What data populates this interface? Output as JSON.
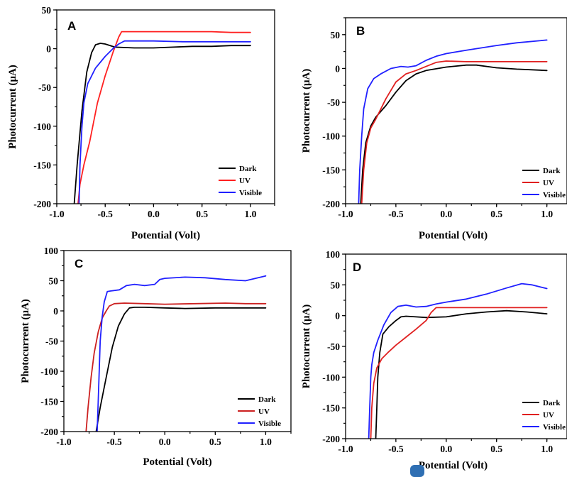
{
  "chart_data": [
    {
      "type": "line",
      "panel_label": "A",
      "xlabel": "Potential (Volt)",
      "ylabel": "Photocurrent (μA)",
      "xlim": [
        -1.0,
        1.25
      ],
      "ylim": [
        -200,
        50
      ],
      "xticks": [
        -1.0,
        -0.5,
        0.0,
        0.5,
        1.0
      ],
      "xtick_labels": [
        "-1.0",
        "-0.5",
        "0.0",
        "0.5",
        "1.0"
      ],
      "yticks": [
        -200,
        -150,
        -100,
        -50,
        0,
        50
      ],
      "ytick_labels": [
        "-200",
        "-150",
        "-100",
        "-50",
        "0",
        "50"
      ],
      "legend_position": "bottom-right",
      "series": [
        {
          "name": "Dark",
          "color": "#000000",
          "points": [
            [
              -0.82,
              -200
            ],
            [
              -0.79,
              -150
            ],
            [
              -0.74,
              -80
            ],
            [
              -0.69,
              -30
            ],
            [
              -0.64,
              -5
            ],
            [
              -0.6,
              5
            ],
            [
              -0.55,
              7
            ],
            [
              -0.5,
              6
            ],
            [
              -0.4,
              2
            ],
            [
              -0.2,
              1
            ],
            [
              0.0,
              1
            ],
            [
              0.2,
              2
            ],
            [
              0.4,
              3
            ],
            [
              0.6,
              3
            ],
            [
              0.8,
              4
            ],
            [
              1.0,
              4
            ]
          ]
        },
        {
          "name": "UV",
          "color": "#ff2020",
          "points": [
            [
              -0.78,
              -200
            ],
            [
              -0.76,
              -175
            ],
            [
              -0.72,
              -150
            ],
            [
              -0.66,
              -120
            ],
            [
              -0.58,
              -70
            ],
            [
              -0.5,
              -35
            ],
            [
              -0.42,
              -5
            ],
            [
              -0.36,
              15
            ],
            [
              -0.33,
              22
            ],
            [
              -0.2,
              22
            ],
            [
              0.0,
              22
            ],
            [
              0.3,
              22
            ],
            [
              0.6,
              22
            ],
            [
              0.8,
              21
            ],
            [
              1.0,
              21
            ]
          ]
        },
        {
          "name": "Visible",
          "color": "#2020ff",
          "points": [
            [
              -0.77,
              -200
            ],
            [
              -0.76,
              -150
            ],
            [
              -0.74,
              -100
            ],
            [
              -0.72,
              -70
            ],
            [
              -0.68,
              -45
            ],
            [
              -0.6,
              -25
            ],
            [
              -0.5,
              -10
            ],
            [
              -0.42,
              0
            ],
            [
              -0.36,
              6
            ],
            [
              -0.3,
              10
            ],
            [
              -0.2,
              10
            ],
            [
              0.0,
              10
            ],
            [
              0.3,
              9
            ],
            [
              0.6,
              9
            ],
            [
              0.8,
              9
            ],
            [
              1.0,
              9
            ]
          ]
        }
      ]
    },
    {
      "type": "line",
      "panel_label": "B",
      "xlabel": "Potential (Volt)",
      "ylabel": "Photocurrent (μA)",
      "xlim": [
        -1.0,
        1.2
      ],
      "ylim": [
        -200,
        75
      ],
      "xticks": [
        -1.0,
        -0.5,
        0.0,
        0.5,
        1.0
      ],
      "xtick_labels": [
        "-1.0",
        "-0.5",
        "0.0",
        "0.5",
        "1.0"
      ],
      "yticks": [
        -200,
        -150,
        -100,
        -50,
        0,
        50
      ],
      "ytick_labels": [
        "-200",
        "-150",
        "-100",
        "-50",
        "0",
        "50"
      ],
      "legend_position": "bottom-right",
      "series": [
        {
          "name": "Dark",
          "color": "#000000",
          "points": [
            [
              -0.85,
              -200
            ],
            [
              -0.83,
              -150
            ],
            [
              -0.8,
              -110
            ],
            [
              -0.75,
              -85
            ],
            [
              -0.7,
              -72
            ],
            [
              -0.6,
              -55
            ],
            [
              -0.5,
              -35
            ],
            [
              -0.4,
              -18
            ],
            [
              -0.3,
              -8
            ],
            [
              -0.2,
              -3
            ],
            [
              0.0,
              2
            ],
            [
              0.2,
              5
            ],
            [
              0.3,
              5
            ],
            [
              0.5,
              1
            ],
            [
              0.7,
              -1
            ],
            [
              1.0,
              -3
            ]
          ]
        },
        {
          "name": "UV",
          "color": "#e02020",
          "points": [
            [
              -0.84,
              -200
            ],
            [
              -0.82,
              -150
            ],
            [
              -0.79,
              -110
            ],
            [
              -0.75,
              -88
            ],
            [
              -0.7,
              -75
            ],
            [
              -0.6,
              -45
            ],
            [
              -0.5,
              -20
            ],
            [
              -0.4,
              -8
            ],
            [
              -0.3,
              -3
            ],
            [
              -0.2,
              3
            ],
            [
              -0.1,
              9
            ],
            [
              0.0,
              11
            ],
            [
              0.2,
              10
            ],
            [
              0.4,
              10
            ],
            [
              0.7,
              10
            ],
            [
              1.0,
              10
            ]
          ]
        },
        {
          "name": "Visible",
          "color": "#2020ff",
          "points": [
            [
              -0.87,
              -200
            ],
            [
              -0.86,
              -150
            ],
            [
              -0.84,
              -100
            ],
            [
              -0.82,
              -60
            ],
            [
              -0.78,
              -30
            ],
            [
              -0.72,
              -15
            ],
            [
              -0.65,
              -8
            ],
            [
              -0.55,
              0
            ],
            [
              -0.45,
              3
            ],
            [
              -0.38,
              2
            ],
            [
              -0.3,
              4
            ],
            [
              -0.2,
              12
            ],
            [
              -0.1,
              18
            ],
            [
              0.0,
              22
            ],
            [
              0.2,
              27
            ],
            [
              0.5,
              34
            ],
            [
              0.7,
              38
            ],
            [
              1.0,
              42
            ]
          ]
        }
      ]
    },
    {
      "type": "line",
      "panel_label": "C",
      "xlabel": "Potential (Volt)",
      "ylabel": "Photocurrent (μA)",
      "xlim": [
        -1.0,
        1.25
      ],
      "ylim": [
        -200,
        100
      ],
      "xticks": [
        -1.0,
        -0.5,
        0.0,
        0.5,
        1.0
      ],
      "xtick_labels": [
        "-1.0",
        "-0.5",
        "0.0",
        "0.5",
        "1.0"
      ],
      "yticks": [
        -200,
        -150,
        -100,
        -50,
        0,
        50,
        100
      ],
      "ytick_labels": [
        "-200",
        "-150",
        "-100",
        "-50",
        "0",
        "50",
        "100"
      ],
      "legend_position": "bottom-right",
      "series": [
        {
          "name": "Dark",
          "color": "#000000",
          "points": [
            [
              -0.68,
              -200
            ],
            [
              -0.64,
              -160
            ],
            [
              -0.58,
              -110
            ],
            [
              -0.52,
              -60
            ],
            [
              -0.46,
              -25
            ],
            [
              -0.4,
              -5
            ],
            [
              -0.35,
              5
            ],
            [
              -0.3,
              6
            ],
            [
              -0.2,
              6
            ],
            [
              0.0,
              5
            ],
            [
              0.2,
              4
            ],
            [
              0.5,
              5
            ],
            [
              0.8,
              5
            ],
            [
              1.0,
              5
            ]
          ]
        },
        {
          "name": "UV",
          "color": "#cc2020",
          "points": [
            [
              -0.78,
              -200
            ],
            [
              -0.76,
              -160
            ],
            [
              -0.73,
              -110
            ],
            [
              -0.7,
              -70
            ],
            [
              -0.66,
              -35
            ],
            [
              -0.62,
              -12
            ],
            [
              -0.58,
              0
            ],
            [
              -0.55,
              8
            ],
            [
              -0.5,
              12
            ],
            [
              -0.4,
              13
            ],
            [
              -0.2,
              12
            ],
            [
              0.0,
              11
            ],
            [
              0.3,
              12
            ],
            [
              0.6,
              13
            ],
            [
              0.8,
              12
            ],
            [
              1.0,
              12
            ]
          ]
        },
        {
          "name": "Visible",
          "color": "#2020ff",
          "points": [
            [
              -0.67,
              -200
            ],
            [
              -0.66,
              -150
            ],
            [
              -0.65,
              -100
            ],
            [
              -0.64,
              -50
            ],
            [
              -0.62,
              -10
            ],
            [
              -0.6,
              15
            ],
            [
              -0.57,
              32
            ],
            [
              -0.54,
              33
            ],
            [
              -0.45,
              35
            ],
            [
              -0.38,
              42
            ],
            [
              -0.3,
              44
            ],
            [
              -0.2,
              42
            ],
            [
              -0.1,
              44
            ],
            [
              -0.05,
              52
            ],
            [
              0.0,
              54
            ],
            [
              0.2,
              56
            ],
            [
              0.4,
              55
            ],
            [
              0.6,
              52
            ],
            [
              0.8,
              50
            ],
            [
              0.9,
              54
            ],
            [
              1.0,
              58
            ]
          ]
        }
      ]
    },
    {
      "type": "line",
      "panel_label": "D",
      "xlabel": "Potential (Volt)",
      "ylabel": "Photocurrent (μA)",
      "xlim": [
        -1.0,
        1.2
      ],
      "ylim": [
        -200,
        100
      ],
      "xticks": [
        -1.0,
        -0.5,
        0.0,
        0.5,
        1.0
      ],
      "xtick_labels": [
        "-1.0",
        "-0.5",
        "0.0",
        "0.5",
        "1.0"
      ],
      "yticks": [
        -200,
        -150,
        -100,
        -50,
        0,
        50,
        100
      ],
      "ytick_labels": [
        "-200",
        "-150",
        "-100",
        "-50",
        "0",
        "50",
        "100"
      ],
      "legend_position": "bottom-right",
      "series": [
        {
          "name": "Dark",
          "color": "#000000",
          "points": [
            [
              -0.7,
              -200
            ],
            [
              -0.69,
              -150
            ],
            [
              -0.68,
              -100
            ],
            [
              -0.66,
              -60
            ],
            [
              -0.63,
              -30
            ],
            [
              -0.57,
              -18
            ],
            [
              -0.5,
              -8
            ],
            [
              -0.45,
              -2
            ],
            [
              -0.4,
              -1
            ],
            [
              -0.3,
              -2
            ],
            [
              -0.2,
              -3
            ],
            [
              0.0,
              -2
            ],
            [
              0.2,
              3
            ],
            [
              0.4,
              6
            ],
            [
              0.6,
              8
            ],
            [
              0.8,
              6
            ],
            [
              1.0,
              3
            ]
          ]
        },
        {
          "name": "UV",
          "color": "#e02020",
          "points": [
            [
              -0.75,
              -200
            ],
            [
              -0.74,
              -150
            ],
            [
              -0.72,
              -110
            ],
            [
              -0.69,
              -85
            ],
            [
              -0.64,
              -70
            ],
            [
              -0.58,
              -60
            ],
            [
              -0.5,
              -48
            ],
            [
              -0.4,
              -35
            ],
            [
              -0.3,
              -22
            ],
            [
              -0.2,
              -8
            ],
            [
              -0.15,
              5
            ],
            [
              -0.1,
              13
            ],
            [
              0.0,
              13
            ],
            [
              0.3,
              13
            ],
            [
              0.6,
              13
            ],
            [
              1.0,
              13
            ]
          ]
        },
        {
          "name": "Visible",
          "color": "#2020ff",
          "points": [
            [
              -0.77,
              -200
            ],
            [
              -0.76,
              -150
            ],
            [
              -0.75,
              -100
            ],
            [
              -0.74,
              -80
            ],
            [
              -0.72,
              -60
            ],
            [
              -0.68,
              -40
            ],
            [
              -0.62,
              -15
            ],
            [
              -0.55,
              5
            ],
            [
              -0.48,
              15
            ],
            [
              -0.4,
              17
            ],
            [
              -0.3,
              14
            ],
            [
              -0.2,
              15
            ],
            [
              -0.1,
              19
            ],
            [
              0.0,
              22
            ],
            [
              0.2,
              27
            ],
            [
              0.4,
              35
            ],
            [
              0.6,
              45
            ],
            [
              0.75,
              52
            ],
            [
              0.85,
              50
            ],
            [
              1.0,
              44
            ]
          ]
        }
      ]
    }
  ]
}
